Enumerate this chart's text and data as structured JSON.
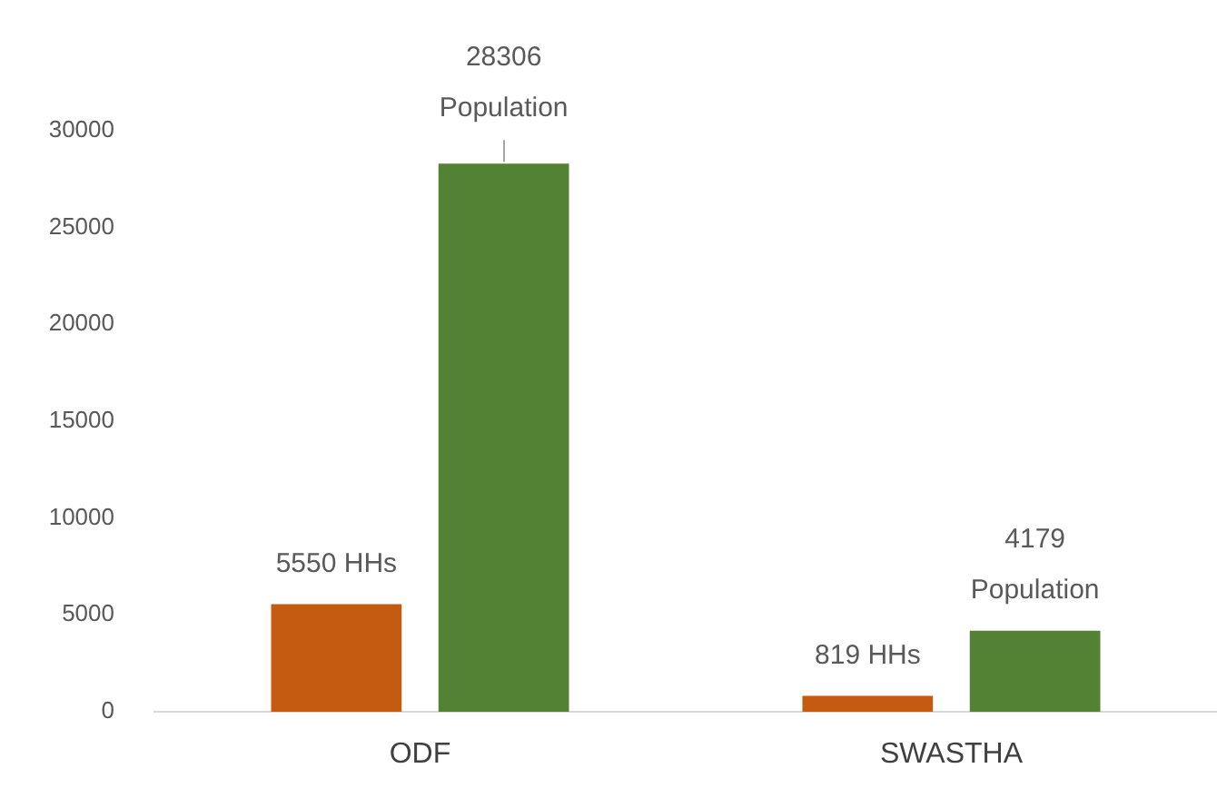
{
  "chart_data": {
    "type": "bar",
    "categories": [
      "ODF",
      "SWASTHA"
    ],
    "series": [
      {
        "color": "#c55a11",
        "values": [
          5550,
          819
        ],
        "value_labels": [
          "5550 HHs",
          "819 HHs"
        ]
      },
      {
        "color": "#548235",
        "values": [
          28306,
          4179
        ],
        "value_labels": [
          "28306 Population",
          "4179 Population"
        ]
      }
    ],
    "ylim": [
      0,
      30000
    ],
    "yticks": [
      0,
      5000,
      10000,
      15000,
      20000,
      25000,
      30000
    ],
    "grid": false
  }
}
